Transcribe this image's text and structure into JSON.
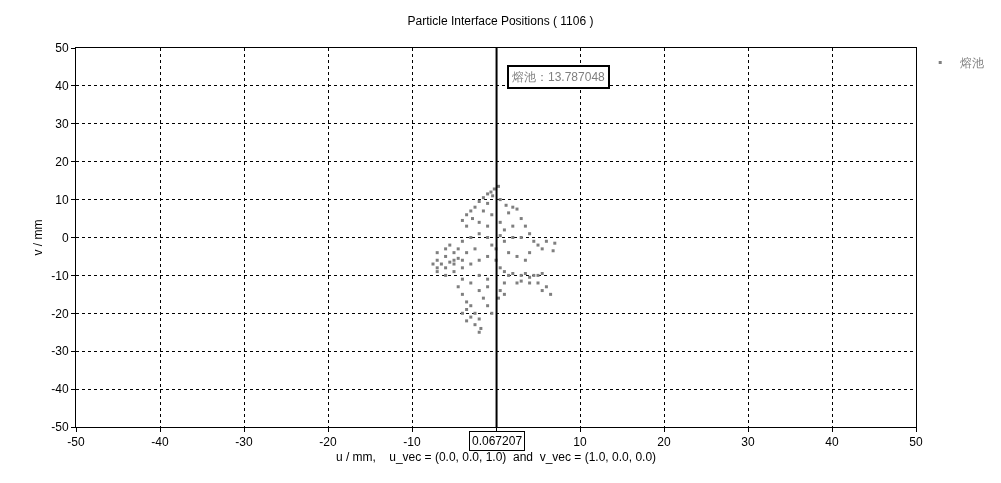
{
  "chart_data": {
    "type": "scatter",
    "title": "Particle Interface Positions ( 1106 )",
    "xlabel": "u / mm,    u_vec = (0.0, 0.0, 1.0)  and  v_vec = (1.0, 0.0, 0.0)",
    "ylabel": "v / mm",
    "xlim": [
      -50,
      50
    ],
    "ylim": [
      -50,
      50
    ],
    "xticks": [
      -50,
      -40,
      -30,
      -20,
      -10,
      {
        "value": 0,
        "label": null
      },
      10,
      20,
      30,
      40,
      50
    ],
    "yticks": [
      -50,
      -40,
      -30,
      -20,
      -10,
      0,
      10,
      20,
      30,
      40,
      50
    ],
    "grid": true,
    "legend": "top right",
    "marker": "square",
    "ref_lines": [
      {
        "axis": "x",
        "value": 0.067207,
        "label": "0.067207",
        "color": "#000000"
      }
    ],
    "annotations": [
      "熔池：13.787048"
    ],
    "series": [
      {
        "name": "熔池",
        "color": "#7f7f7f",
        "x": [
          0.3,
          -0.2,
          -0.6,
          -1,
          -0.4,
          -1.5,
          -2,
          -1,
          0.5,
          1.2,
          2,
          2.5,
          1.5,
          -2.5,
          -3,
          -3.5,
          -2.8,
          -4,
          -3.5,
          -1.5,
          -0.5,
          -2,
          -1,
          0.5,
          1,
          2,
          3,
          3.5,
          4,
          4.5,
          5,
          6,
          7,
          6.8,
          5.5,
          3,
          2,
          1,
          0.5,
          -1,
          -2,
          -3,
          -4,
          -4.5,
          -5,
          -6,
          -7,
          -7.5,
          -7,
          -6.5,
          -5.5,
          -5,
          -4.5,
          -4,
          -5,
          -6,
          -7,
          -6,
          -5,
          -4,
          -3,
          -2,
          -1,
          0,
          0.5,
          1,
          1.5,
          2,
          3,
          3.5,
          4,
          4.5,
          5,
          5.5,
          5,
          4,
          3,
          2.5,
          6,
          6.5,
          5.5,
          1,
          0.5,
          0.3,
          1,
          -1,
          -2,
          -3,
          -4,
          -4.5,
          -4,
          -3.5,
          -3,
          -3.5,
          -2.5,
          -3,
          -2,
          -2.5,
          -1.8,
          -2,
          -3.5,
          -4,
          -1,
          -0.5,
          -1.5,
          -2,
          -1,
          0,
          -0.5,
          -2.5,
          -3.5,
          2.5,
          3.5,
          4,
          1.5,
          -6,
          -7,
          -5.5
        ],
        "values": [
          13.5,
          12.8,
          12,
          11.5,
          11,
          10.5,
          9.5,
          9,
          10,
          8.5,
          8,
          7.5,
          6.5,
          8,
          7,
          6,
          5,
          4.5,
          3,
          7,
          6,
          4,
          3,
          4,
          2,
          3,
          5,
          3,
          1,
          -1,
          -2,
          -1,
          -1.5,
          -3.5,
          -3,
          0,
          0,
          -1,
          0.5,
          0,
          1,
          0,
          -1,
          -3,
          -4,
          -5,
          -6,
          -7,
          -8,
          -7,
          -6.5,
          -6,
          -5.5,
          -6,
          -7,
          -8,
          -9,
          -10,
          -9,
          -8,
          -7,
          -6,
          -5,
          -6,
          -8,
          -9,
          -10,
          -9.5,
          -10,
          -9.5,
          -10.5,
          -10,
          -10,
          -9.5,
          -12,
          -12,
          -11.5,
          -12,
          -13,
          -15,
          -14,
          -12,
          -14,
          -16,
          -15,
          -11,
          -10,
          -12,
          -11,
          -13,
          -15,
          -17,
          -18,
          -19,
          -20,
          -21,
          -21.5,
          -23,
          -24,
          -25,
          -22,
          -20,
          -18,
          -20,
          -16,
          -14,
          -13,
          -3,
          -2,
          -3,
          -4,
          -5,
          -6,
          -4,
          -4,
          -3,
          -4,
          -2
        ]
      }
    ]
  }
}
